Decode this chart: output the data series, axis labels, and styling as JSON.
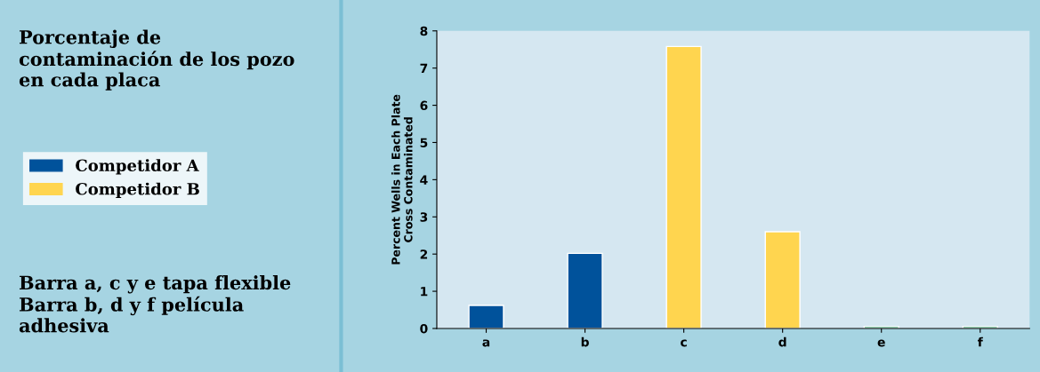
{
  "chart_data": {
    "type": "bar",
    "title": "Porcentaje de\ncontaminación de los pozo\nen cada placa",
    "ylabel": "Percent Wells in Each Plate\nCross Contaminated",
    "categories": [
      "a",
      "b",
      "c",
      "d",
      "e",
      "f"
    ],
    "series": [
      {
        "name": "Competidor A",
        "color": "#00529b",
        "values": [
          0.62,
          2.02,
          null,
          null,
          null,
          null
        ]
      },
      {
        "name": "Competidor B",
        "color": "#ffd54f",
        "values": [
          null,
          null,
          7.58,
          2.6,
          null,
          null
        ]
      },
      {
        "color": "#1a9a5a",
        "values": [
          null,
          null,
          null,
          null,
          0.05,
          0.05
        ]
      }
    ],
    "ylim": [
      0,
      8
    ],
    "yticks": [
      0,
      1,
      2,
      3,
      4,
      5,
      6,
      7,
      8
    ],
    "annotations": [
      "Barra a, c y e tapa flexible\nBarra b, d y f película\nadhesiva"
    ],
    "legend": "left",
    "grid": false
  }
}
